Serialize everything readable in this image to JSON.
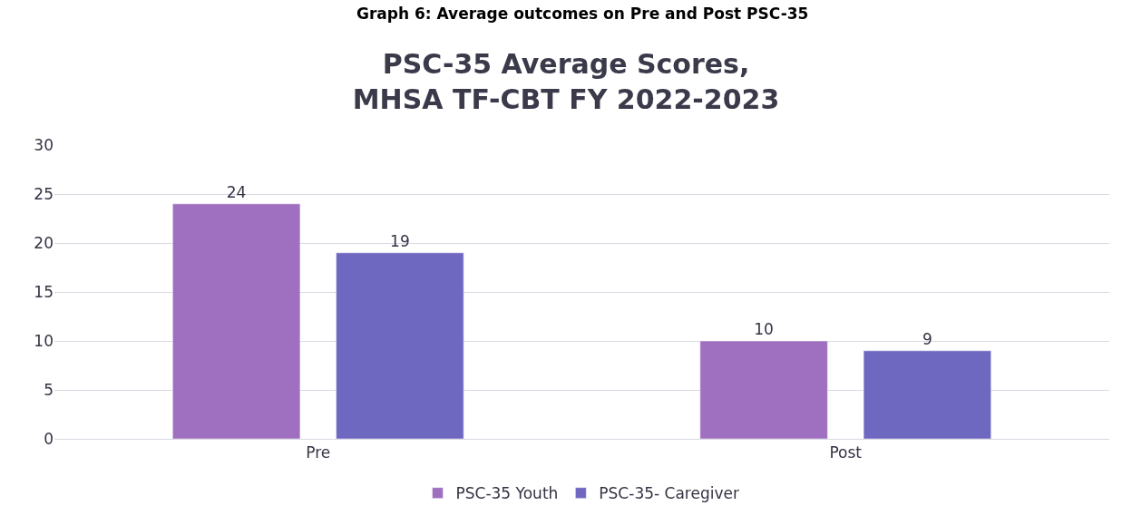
{
  "chart_data": {
    "type": "bar",
    "title": "PSC-35 Average Scores,\nMHSA TF-CBT FY 2022-2023",
    "annotations": [
      "Graph 6: Average outcomes on Pre and Post PSC-35"
    ],
    "categories": [
      "Pre",
      "Post"
    ],
    "series": [
      {
        "name": "PSC-35 Youth",
        "color": "#a070c0",
        "values": [
          24,
          10
        ]
      },
      {
        "name": "PSC-35- Caregiver",
        "color": "#6f68c0",
        "values": [
          19,
          9
        ]
      }
    ],
    "ylim": [
      0,
      30
    ],
    "yticks": [
      0,
      5,
      10,
      15,
      20,
      25,
      30
    ],
    "grid": "y",
    "legend": "bottom",
    "data_labels": true
  }
}
